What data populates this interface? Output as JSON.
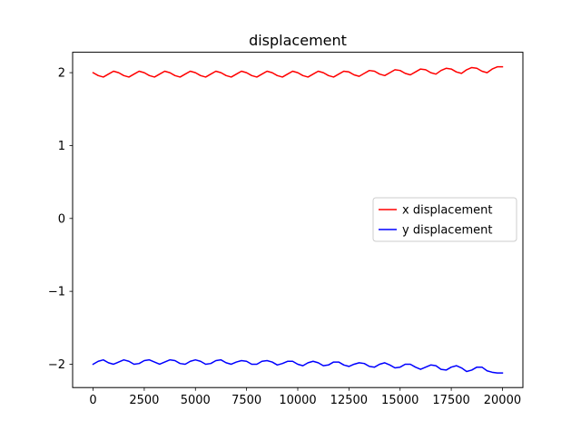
{
  "chart_data": {
    "type": "line",
    "title": "displacement",
    "xlabel": "",
    "ylabel": "",
    "xlim": [
      -1000,
      21000
    ],
    "ylim": [
      -2.32,
      2.28
    ],
    "xticks": [
      {
        "value": 0,
        "label": "0"
      },
      {
        "value": 2500,
        "label": "2500"
      },
      {
        "value": 5000,
        "label": "5000"
      },
      {
        "value": 7500,
        "label": "7500"
      },
      {
        "value": 10000,
        "label": "10000"
      },
      {
        "value": 12500,
        "label": "12500"
      },
      {
        "value": 15000,
        "label": "15000"
      },
      {
        "value": 17500,
        "label": "17500"
      },
      {
        "value": 20000,
        "label": "20000"
      }
    ],
    "yticks": [
      {
        "value": 2,
        "label": "2"
      },
      {
        "value": 1,
        "label": "1"
      },
      {
        "value": 0,
        "label": "0"
      },
      {
        "value": -1,
        "label": "−1"
      },
      {
        "value": -2,
        "label": "−2"
      }
    ],
    "grid": false,
    "legend_position": "center-right",
    "series": [
      {
        "name": "x displacement",
        "color": "#ff0000",
        "x": [
          0,
          250,
          500,
          750,
          1000,
          1250,
          1500,
          1750,
          2000,
          2250,
          2500,
          2750,
          3000,
          3250,
          3500,
          3750,
          4000,
          4250,
          4500,
          4750,
          5000,
          5250,
          5500,
          5750,
          6000,
          6250,
          6500,
          6750,
          7000,
          7250,
          7500,
          7750,
          8000,
          8250,
          8500,
          8750,
          9000,
          9250,
          9500,
          9750,
          10000,
          10250,
          10500,
          10750,
          11000,
          11250,
          11500,
          11750,
          12000,
          12250,
          12500,
          12750,
          13000,
          13250,
          13500,
          13750,
          14000,
          14250,
          14500,
          14750,
          15000,
          15250,
          15500,
          15750,
          16000,
          16250,
          16500,
          16750,
          17000,
          17250,
          17500,
          17750,
          18000,
          18250,
          18500,
          18750,
          19000,
          19250,
          19500,
          19750,
          20000
        ],
        "y": [
          2.0,
          1.96,
          1.94,
          1.98,
          2.02,
          2.0,
          1.96,
          1.94,
          1.98,
          2.02,
          2.0,
          1.96,
          1.94,
          1.98,
          2.02,
          2.0,
          1.96,
          1.94,
          1.98,
          2.02,
          2.0,
          1.96,
          1.94,
          1.98,
          2.02,
          2.0,
          1.96,
          1.94,
          1.98,
          2.02,
          2.0,
          1.96,
          1.94,
          1.98,
          2.02,
          2.0,
          1.96,
          1.94,
          1.98,
          2.02,
          2.0,
          1.96,
          1.94,
          1.98,
          2.02,
          2.0,
          1.96,
          1.94,
          1.98,
          2.02,
          2.01,
          1.97,
          1.95,
          1.99,
          2.03,
          2.02,
          1.98,
          1.96,
          2.0,
          2.04,
          2.03,
          1.99,
          1.97,
          2.01,
          2.05,
          2.04,
          2.0,
          1.98,
          2.03,
          2.06,
          2.05,
          2.01,
          1.99,
          2.04,
          2.07,
          2.06,
          2.02,
          2.0,
          2.05,
          2.08,
          2.08
        ]
      },
      {
        "name": "y displacement",
        "color": "#0000ff",
        "x": [
          0,
          250,
          500,
          750,
          1000,
          1250,
          1500,
          1750,
          2000,
          2250,
          2500,
          2750,
          3000,
          3250,
          3500,
          3750,
          4000,
          4250,
          4500,
          4750,
          5000,
          5250,
          5500,
          5750,
          6000,
          6250,
          6500,
          6750,
          7000,
          7250,
          7500,
          7750,
          8000,
          8250,
          8500,
          8750,
          9000,
          9250,
          9500,
          9750,
          10000,
          10250,
          10500,
          10750,
          11000,
          11250,
          11500,
          11750,
          12000,
          12250,
          12500,
          12750,
          13000,
          13250,
          13500,
          13750,
          14000,
          14250,
          14500,
          14750,
          15000,
          15250,
          15500,
          15750,
          16000,
          16250,
          16500,
          16750,
          17000,
          17250,
          17500,
          17750,
          18000,
          18250,
          18500,
          18750,
          19000,
          19250,
          19500,
          19750,
          20000
        ],
        "y": [
          -2.0,
          -1.96,
          -1.94,
          -1.98,
          -2.0,
          -1.97,
          -1.94,
          -1.96,
          -2.0,
          -1.99,
          -1.95,
          -1.94,
          -1.97,
          -2.0,
          -1.97,
          -1.94,
          -1.95,
          -1.99,
          -2.0,
          -1.96,
          -1.94,
          -1.96,
          -2.0,
          -1.99,
          -1.95,
          -1.94,
          -1.98,
          -2.0,
          -1.97,
          -1.95,
          -1.96,
          -2.0,
          -2.0,
          -1.96,
          -1.95,
          -1.97,
          -2.01,
          -1.99,
          -1.96,
          -1.96,
          -2.0,
          -2.02,
          -1.98,
          -1.96,
          -1.98,
          -2.02,
          -2.01,
          -1.97,
          -1.97,
          -2.01,
          -2.03,
          -2.0,
          -1.98,
          -1.99,
          -2.03,
          -2.04,
          -2.0,
          -1.98,
          -2.01,
          -2.05,
          -2.04,
          -2.0,
          -2.0,
          -2.04,
          -2.07,
          -2.04,
          -2.01,
          -2.02,
          -2.07,
          -2.08,
          -2.04,
          -2.02,
          -2.05,
          -2.1,
          -2.08,
          -2.04,
          -2.04,
          -2.09,
          -2.11,
          -2.12,
          -2.12
        ]
      }
    ]
  }
}
